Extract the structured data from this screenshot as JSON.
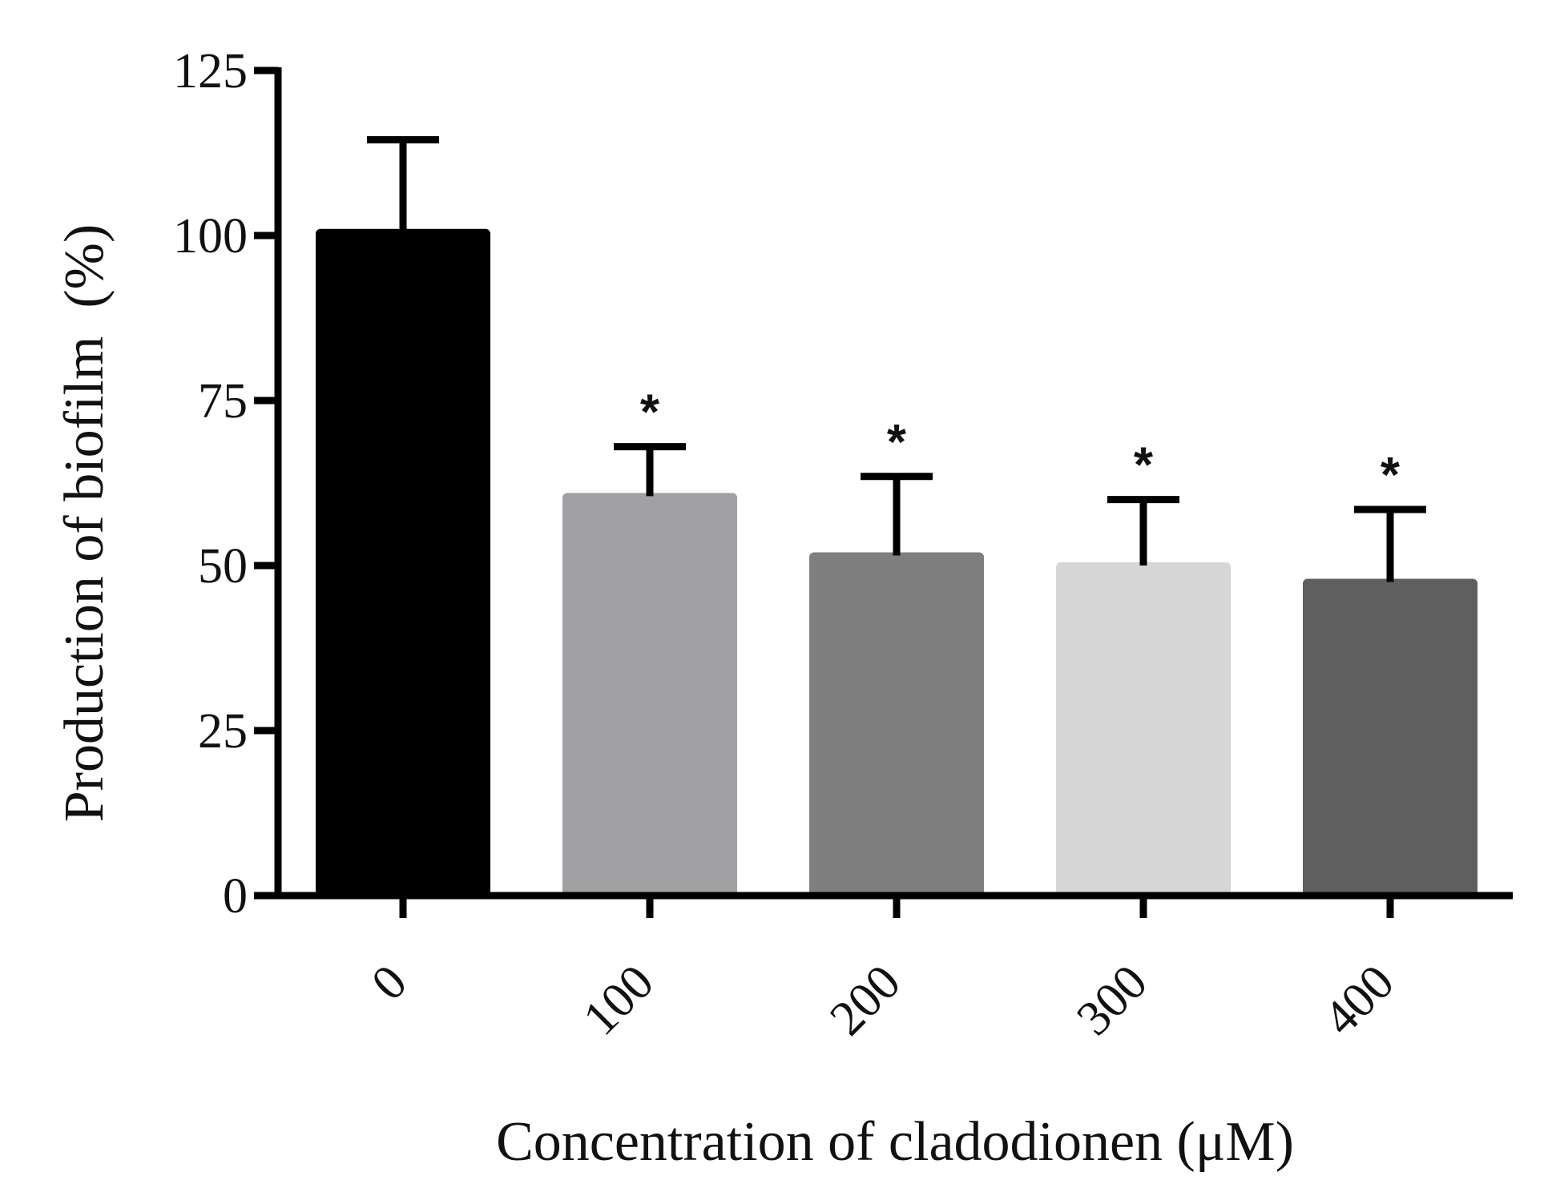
{
  "chart_data": {
    "type": "bar",
    "categories": [
      "0",
      "100",
      "200",
      "300",
      "400"
    ],
    "values": [
      101,
      61,
      52,
      50.5,
      48
    ],
    "error_upper": [
      114.5,
      68,
      63.5,
      60,
      58.5
    ],
    "significance": [
      "",
      "*",
      "*",
      "*",
      "*"
    ],
    "colors": [
      "#000000",
      "#a1a1a4",
      "#7f7f7f",
      "#d6d6d6",
      "#5f5f5f"
    ],
    "title": "",
    "xlabel": "Concentration of cladodionen (μM)",
    "ylabel": "Production of biofilm  (%)",
    "ylim": [
      0,
      125
    ],
    "yticks": [
      "0",
      "25",
      "50",
      "75",
      "100",
      "125"
    ],
    "grid": false,
    "legend": "none"
  }
}
